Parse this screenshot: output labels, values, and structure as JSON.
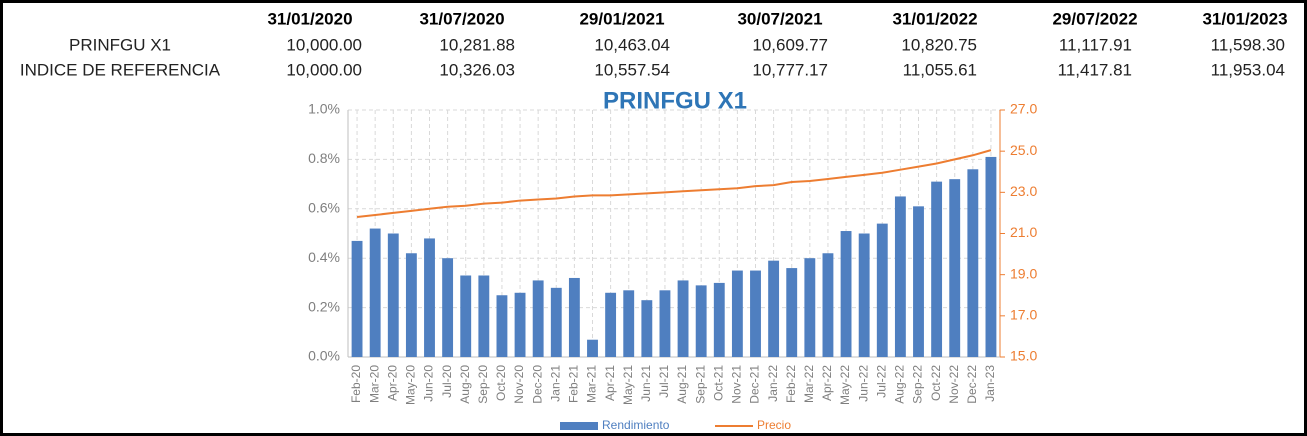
{
  "table": {
    "header": [
      "31/01/2020",
      "31/07/2020",
      "29/01/2021",
      "30/07/2021",
      "31/01/2022",
      "29/07/2022",
      "31/01/2023"
    ],
    "rows": [
      {
        "label": "PRINFGU X1",
        "values": [
          "10,000.00",
          "10,281.88",
          "10,463.04",
          "10,609.77",
          "10,820.75",
          "11,117.91",
          "11,598.30"
        ]
      },
      {
        "label": "INDICE DE REFERENCIA",
        "values": [
          "10,000.00",
          "10,326.03",
          "10,557.54",
          "10,777.17",
          "11,055.61",
          "11,417.81",
          "11,953.04"
        ]
      }
    ]
  },
  "chart_data": {
    "type": "bar_line",
    "title": "PRINFGU X1",
    "categories": [
      "Feb-20",
      "Mar-20",
      "Apr-20",
      "May-20",
      "Jun-20",
      "Jul-20",
      "Aug-20",
      "Sep-20",
      "Oct-20",
      "Nov-20",
      "Dec-20",
      "Jan-21",
      "Feb-21",
      "Mar-21",
      "Apr-21",
      "May-21",
      "Jun-21",
      "Jul-21",
      "Aug-21",
      "Sep-21",
      "Oct-21",
      "Nov-21",
      "Dec-21",
      "Jan-22",
      "Feb-22",
      "Mar-22",
      "Apr-22",
      "May-22",
      "Jun-22",
      "Jul-22",
      "Aug-22",
      "Sep-22",
      "Oct-22",
      "Nov-22",
      "Dec-22",
      "Jan-23"
    ],
    "series": [
      {
        "name": "Rendimiento",
        "color": "#4f7fc0",
        "type": "bar",
        "values": [
          0.47,
          0.52,
          0.5,
          0.42,
          0.48,
          0.4,
          0.33,
          0.33,
          0.25,
          0.26,
          0.31,
          0.28,
          0.32,
          0.07,
          0.26,
          0.27,
          0.23,
          0.27,
          0.31,
          0.29,
          0.3,
          0.35,
          0.35,
          0.39,
          0.36,
          0.4,
          0.42,
          0.51,
          0.5,
          0.54,
          0.65,
          0.61,
          0.71,
          0.72,
          0.76,
          0.81
        ]
      },
      {
        "name": "Precio",
        "color": "#ed7d31",
        "type": "line",
        "axis": "y2",
        "values": [
          21.8,
          21.9,
          22.0,
          22.1,
          22.2,
          22.3,
          22.35,
          22.45,
          22.5,
          22.6,
          22.65,
          22.7,
          22.8,
          22.85,
          22.85,
          22.9,
          22.95,
          23.0,
          23.05,
          23.1,
          23.15,
          23.2,
          23.3,
          23.35,
          23.5,
          23.55,
          23.65,
          23.75,
          23.85,
          23.95,
          24.1,
          24.25,
          24.4,
          24.6,
          24.8,
          25.05
        ]
      }
    ],
    "ylim": [
      0,
      1.0
    ],
    "yticks": [
      {
        "value": 0,
        "label": "0.0%"
      },
      {
        "value": 0.2,
        "label": "0.2%"
      },
      {
        "value": 0.4,
        "label": "0.4%"
      },
      {
        "value": 0.6,
        "label": "0.6%"
      },
      {
        "value": 0.8,
        "label": "0.8%"
      },
      {
        "value": 1.0,
        "label": "1.0%"
      }
    ],
    "y2lim": [
      15,
      27
    ],
    "y2ticks": [
      {
        "value": 15,
        "label": "15.0"
      },
      {
        "value": 17,
        "label": "17.0"
      },
      {
        "value": 19,
        "label": "19.0"
      },
      {
        "value": 21,
        "label": "21.0"
      },
      {
        "value": 23,
        "label": "23.0"
      },
      {
        "value": 25,
        "label": "25.0"
      },
      {
        "value": 27,
        "label": "27.0"
      }
    ],
    "grid": true,
    "legend": "bottom"
  }
}
